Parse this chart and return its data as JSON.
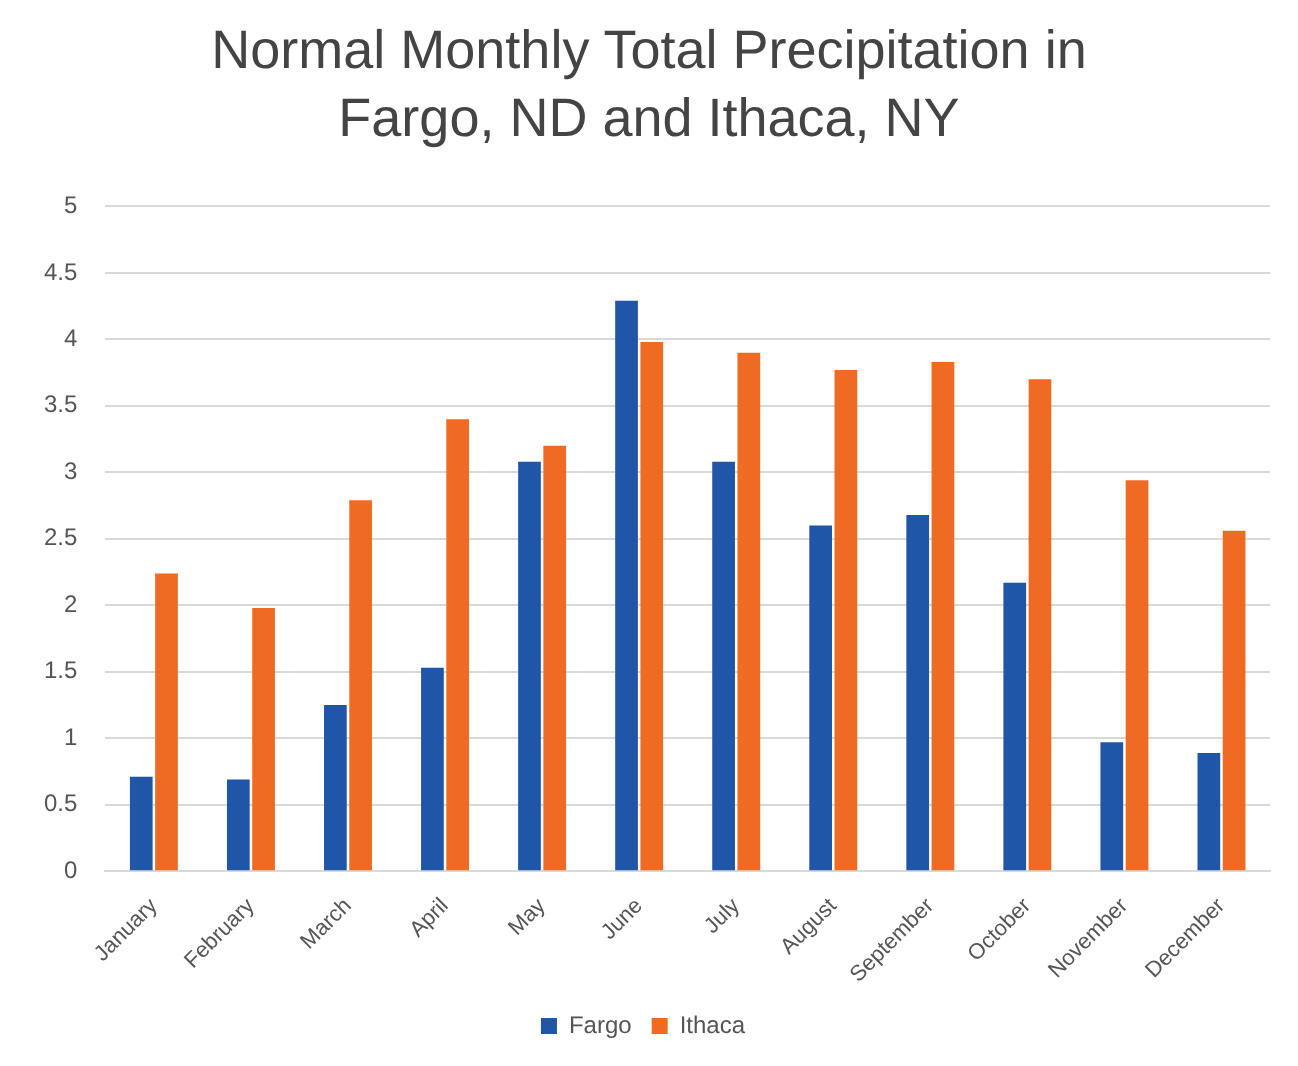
{
  "chart_data": {
    "type": "bar",
    "title": "Normal Monthly Total Precipitation in Fargo, ND and Ithaca, NY",
    "categories": [
      "January",
      "February",
      "March",
      "April",
      "May",
      "June",
      "July",
      "August",
      "September",
      "October",
      "November",
      "December"
    ],
    "series": [
      {
        "name": "Fargo",
        "color": "#1f56a8",
        "values": [
          0.71,
          0.69,
          1.25,
          1.53,
          3.08,
          4.29,
          3.08,
          2.6,
          2.68,
          2.17,
          0.97,
          0.89
        ]
      },
      {
        "name": "Ithaca",
        "color": "#ef6a22",
        "values": [
          2.24,
          1.98,
          2.79,
          3.4,
          3.2,
          3.98,
          3.9,
          3.77,
          3.83,
          3.7,
          2.94,
          2.56
        ]
      }
    ],
    "ylim": [
      0,
      5
    ],
    "yticks": [
      0,
      0.5,
      1,
      1.5,
      2,
      2.5,
      3,
      3.5,
      4,
      4.5,
      5
    ],
    "grid": "y",
    "legend": "bottom"
  }
}
